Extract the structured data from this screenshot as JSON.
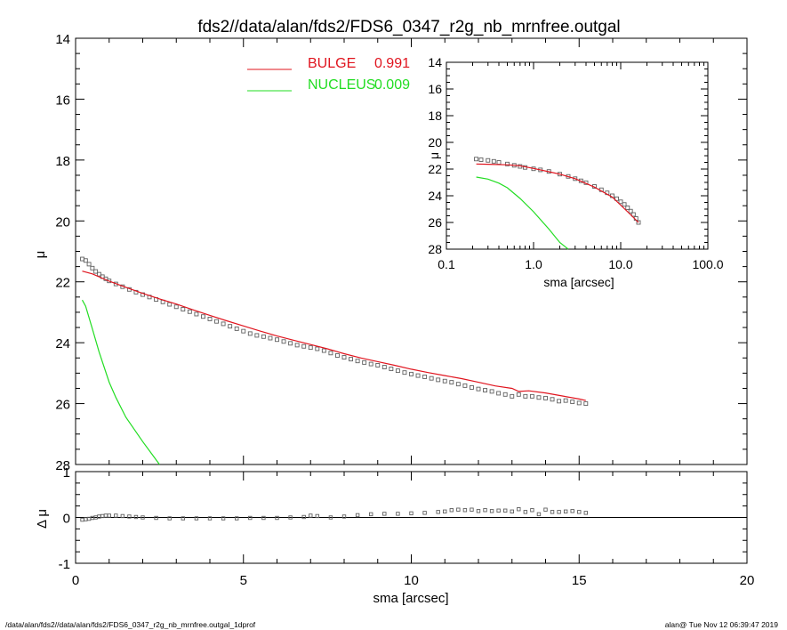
{
  "header": {
    "title": "fds2//data/alan/fds2/FDS6_0347_r2g_nb_mrnfree.outgal"
  },
  "footer": {
    "left_text": "/data/alan/fds2//data/alan/fds2/FDS6_0347_r2g_nb_mrnfree.outgal_1dprof",
    "right_text": "alan@  Tue Nov 12 06:39:47 2019"
  },
  "colors": {
    "bulge": "#e0141e",
    "nucleus": "#22dd22",
    "data_marker": "#606060"
  },
  "chart_data": [
    {
      "type": "line",
      "panel": "main",
      "title": "fds2//data/alan/fds2/FDS6_0347_r2g_nb_mrnfree.outgal",
      "xlabel": "",
      "ylabel": "μ",
      "xlim": [
        0,
        20
      ],
      "ylim": [
        28,
        14
      ],
      "y_inverted": true,
      "xticks": [
        "0",
        "5",
        "10",
        "15",
        "20"
      ],
      "yticks": [
        "14",
        "16",
        "18",
        "20",
        "22",
        "24",
        "26",
        "28"
      ],
      "legend": [
        {
          "name": "BULGE",
          "value": "0.991",
          "color": "#e0141e"
        },
        {
          "name": "NUCLEUS",
          "value": "0.009",
          "color": "#22dd22"
        }
      ],
      "series": [
        {
          "name": "data",
          "marker": "square",
          "x": [
            0.2,
            0.3,
            0.4,
            0.5,
            0.6,
            0.7,
            0.8,
            0.9,
            1.0,
            1.2,
            1.4,
            1.6,
            1.8,
            2.0,
            2.2,
            2.4,
            2.6,
            2.8,
            3.0,
            3.2,
            3.4,
            3.6,
            3.8,
            4.0,
            4.2,
            4.4,
            4.6,
            4.8,
            5.0,
            5.2,
            5.4,
            5.6,
            5.8,
            6.0,
            6.2,
            6.4,
            6.6,
            6.8,
            7.0,
            7.2,
            7.4,
            7.6,
            7.8,
            8.0,
            8.2,
            8.4,
            8.6,
            8.8,
            9.0,
            9.2,
            9.4,
            9.6,
            9.8,
            10.0,
            10.2,
            10.4,
            10.6,
            10.8,
            11.0,
            11.2,
            11.4,
            11.6,
            11.8,
            12.0,
            12.2,
            12.4,
            12.6,
            12.8,
            13.0,
            13.2,
            13.4,
            13.6,
            13.8,
            14.0,
            14.2,
            14.4,
            14.6,
            14.8,
            15.0,
            15.2
          ],
          "y": [
            21.25,
            21.3,
            21.42,
            21.55,
            21.66,
            21.75,
            21.83,
            21.9,
            21.97,
            22.07,
            22.16,
            22.25,
            22.34,
            22.42,
            22.5,
            22.58,
            22.66,
            22.74,
            22.82,
            22.9,
            22.98,
            23.06,
            23.14,
            23.22,
            23.3,
            23.38,
            23.46,
            23.54,
            23.62,
            23.7,
            23.76,
            23.8,
            23.85,
            23.9,
            23.96,
            24.02,
            24.08,
            24.12,
            24.16,
            24.2,
            24.26,
            24.34,
            24.42,
            24.48,
            24.54,
            24.6,
            24.65,
            24.7,
            24.74,
            24.8,
            24.86,
            24.92,
            24.98,
            25.03,
            25.08,
            25.12,
            25.17,
            25.22,
            25.26,
            25.3,
            25.36,
            25.41,
            25.47,
            25.52,
            25.56,
            25.6,
            25.66,
            25.7,
            25.76,
            25.7,
            25.76,
            25.76,
            25.8,
            25.82,
            25.86,
            25.92,
            25.9,
            25.94,
            25.98,
            26.0
          ]
        },
        {
          "name": "BULGE",
          "x": [
            0.2,
            0.5,
            1.0,
            1.5,
            2.0,
            2.5,
            3.0,
            3.5,
            4.0,
            4.5,
            5.0,
            5.5,
            6.0,
            6.5,
            7.0,
            7.5,
            8.0,
            8.5,
            9.0,
            9.5,
            10.0,
            10.5,
            11.0,
            11.5,
            12.0,
            12.5,
            13.0,
            13.2,
            13.5,
            14.0,
            14.5,
            15.0,
            15.2
          ],
          "y": [
            21.65,
            21.74,
            21.98,
            22.18,
            22.38,
            22.56,
            22.73,
            22.92,
            23.1,
            23.28,
            23.45,
            23.62,
            23.78,
            23.92,
            24.06,
            24.2,
            24.36,
            24.5,
            24.62,
            24.74,
            24.87,
            24.98,
            25.08,
            25.18,
            25.3,
            25.42,
            25.5,
            25.6,
            25.58,
            25.65,
            25.75,
            25.85,
            25.9
          ]
        },
        {
          "name": "NUCLEUS",
          "x": [
            0.2,
            0.3,
            0.5,
            0.7,
            1.0,
            1.2,
            1.5,
            2.0,
            2.5
          ],
          "y": [
            22.6,
            22.8,
            23.55,
            24.3,
            25.3,
            25.8,
            26.45,
            27.25,
            28.05
          ]
        }
      ]
    },
    {
      "type": "line",
      "panel": "residual",
      "xlabel": "sma [arcsec]",
      "ylabel": "Δ μ",
      "xlim": [
        0,
        20
      ],
      "ylim": [
        -1,
        1
      ],
      "xticks": [
        "0",
        "5",
        "10",
        "15",
        "20"
      ],
      "yticks": [
        "-1",
        "0",
        "1"
      ],
      "series": [
        {
          "name": "residual",
          "marker": "square",
          "x": [
            0.2,
            0.3,
            0.4,
            0.5,
            0.6,
            0.7,
            0.8,
            0.9,
            1.0,
            1.2,
            1.4,
            1.6,
            1.8,
            2.0,
            2.4,
            2.8,
            3.2,
            3.6,
            4.0,
            4.4,
            4.8,
            5.2,
            5.6,
            6.0,
            6.4,
            6.8,
            7.0,
            7.2,
            7.6,
            8.0,
            8.4,
            8.8,
            9.2,
            9.6,
            10.0,
            10.4,
            10.8,
            11.0,
            11.2,
            11.4,
            11.6,
            11.8,
            12.0,
            12.2,
            12.4,
            12.6,
            12.8,
            13.0,
            13.2,
            13.4,
            13.6,
            13.8,
            14.0,
            14.2,
            14.4,
            14.6,
            14.8,
            15.0,
            15.2
          ],
          "y": [
            -0.05,
            -0.04,
            -0.03,
            -0.01,
            0.0,
            0.02,
            0.03,
            0.04,
            0.04,
            0.04,
            0.03,
            0.02,
            0.01,
            0.0,
            -0.01,
            -0.02,
            -0.02,
            -0.02,
            -0.02,
            -0.02,
            -0.02,
            -0.01,
            -0.01,
            -0.01,
            0.0,
            0.01,
            0.04,
            0.03,
            0.0,
            0.02,
            0.05,
            0.07,
            0.08,
            0.08,
            0.09,
            0.1,
            0.12,
            0.13,
            0.16,
            0.17,
            0.16,
            0.17,
            0.14,
            0.16,
            0.14,
            0.15,
            0.15,
            0.13,
            0.18,
            0.12,
            0.16,
            0.07,
            0.17,
            0.12,
            0.12,
            0.13,
            0.14,
            0.12,
            0.1
          ]
        }
      ]
    },
    {
      "type": "line",
      "panel": "inset",
      "xlabel": "sma [arcsec]",
      "ylabel": "μ",
      "x_scale": "log",
      "xlim": [
        0.1,
        100.0
      ],
      "ylim": [
        28,
        14
      ],
      "y_inverted": true,
      "xticks": [
        "0.1",
        "1.0",
        "10.0",
        "100.0"
      ],
      "yticks": [
        "14",
        "16",
        "18",
        "20",
        "22",
        "24",
        "26",
        "28"
      ],
      "series": [
        {
          "name": "data",
          "marker": "square",
          "x": [
            0.22,
            0.25,
            0.3,
            0.35,
            0.4,
            0.5,
            0.6,
            0.7,
            0.8,
            1.0,
            1.2,
            1.5,
            2.0,
            2.5,
            3.0,
            3.5,
            4.0,
            5.0,
            6.0,
            7.0,
            8.0,
            9.0,
            10.0,
            11.0,
            12.0,
            13.0,
            14.0,
            15.0,
            16.0
          ],
          "y": [
            21.25,
            21.3,
            21.35,
            21.42,
            21.5,
            21.62,
            21.72,
            21.8,
            21.88,
            21.98,
            22.06,
            22.18,
            22.38,
            22.55,
            22.72,
            22.88,
            23.02,
            23.3,
            23.55,
            23.78,
            24.0,
            24.22,
            24.45,
            24.65,
            24.9,
            25.15,
            25.4,
            25.7,
            26.0
          ]
        },
        {
          "name": "BULGE",
          "x": [
            0.22,
            0.3,
            0.5,
            0.7,
            1.0,
            1.5,
            2.0,
            3.0,
            5.0,
            8.0,
            12.0,
            16.0
          ],
          "y": [
            21.62,
            21.64,
            21.68,
            21.75,
            21.95,
            22.2,
            22.38,
            22.72,
            23.35,
            24.1,
            25.2,
            26.0
          ]
        },
        {
          "name": "NUCLEUS",
          "x": [
            0.22,
            0.3,
            0.4,
            0.5,
            0.7,
            1.0,
            1.5,
            2.0,
            2.5
          ],
          "y": [
            22.6,
            22.75,
            23.05,
            23.4,
            24.2,
            25.2,
            26.5,
            27.5,
            28.1
          ]
        }
      ]
    }
  ]
}
